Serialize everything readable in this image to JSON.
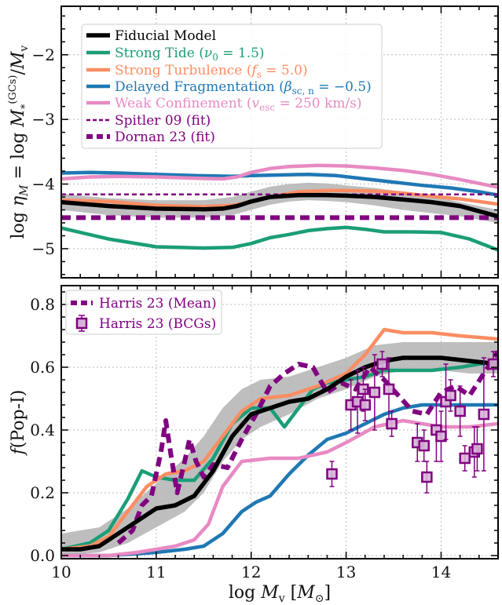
{
  "chart_data": [
    {
      "type": "line",
      "panel": "top",
      "ylabel": "log η_M = log M_*^(GCs) / M_v",
      "xlim": [
        10,
        14.6
      ],
      "ylim": [
        -5.45,
        -1.25
      ],
      "yticks": [
        -5,
        -4,
        -3,
        -2
      ],
      "ytick_labels": [
        "−5",
        "−4",
        "−3",
        "−2"
      ],
      "grid": true,
      "legend_placement": "top-left",
      "band": {
        "x": [
          10.0,
          10.5,
          11.0,
          11.5,
          11.8,
          12.0,
          12.2,
          12.4,
          12.6,
          12.8,
          13.0,
          13.3,
          13.6,
          13.9,
          14.2,
          14.6
        ],
        "lower": [
          -4.4,
          -4.48,
          -4.52,
          -4.52,
          -4.48,
          -4.4,
          -4.32,
          -4.27,
          -4.25,
          -4.26,
          -4.28,
          -4.33,
          -4.4,
          -4.45,
          -4.5,
          -4.6
        ],
        "upper": [
          -4.15,
          -4.22,
          -4.25,
          -4.25,
          -4.2,
          -4.12,
          -4.04,
          -4.0,
          -3.98,
          -3.99,
          -4.02,
          -4.06,
          -4.12,
          -4.18,
          -4.28,
          -4.4
        ]
      },
      "series": [
        {
          "name": "Fiducial Model",
          "color": "#000000",
          "style": "solid",
          "width": 5.5,
          "x": [
            10.0,
            10.5,
            11.0,
            11.5,
            11.7,
            11.85,
            12.0,
            12.2,
            12.5,
            12.8,
            13.0,
            13.3,
            13.6,
            13.9,
            14.2,
            14.6
          ],
          "y": [
            -4.28,
            -4.34,
            -4.38,
            -4.39,
            -4.38,
            -4.34,
            -4.27,
            -4.2,
            -4.17,
            -4.17,
            -4.18,
            -4.2,
            -4.24,
            -4.28,
            -4.34,
            -4.5
          ]
        },
        {
          "name": "Strong Tide (ν0 = 1.5)",
          "color": "#1b9e77",
          "style": "solid",
          "width": 4.5,
          "x": [
            10.0,
            10.5,
            11.0,
            11.5,
            11.8,
            12.0,
            12.2,
            12.4,
            12.6,
            12.8,
            13.0,
            13.2,
            13.4,
            13.7,
            14.0,
            14.3,
            14.6
          ],
          "y": [
            -4.68,
            -4.85,
            -4.97,
            -4.99,
            -4.98,
            -4.92,
            -4.83,
            -4.78,
            -4.72,
            -4.69,
            -4.67,
            -4.7,
            -4.74,
            -4.74,
            -4.75,
            -4.85,
            -5.02
          ]
        },
        {
          "name": "Strong Turbulence (f_s = 5.0)",
          "color": "#fc8d62",
          "style": "solid",
          "width": 4.5,
          "x": [
            10.0,
            10.5,
            11.0,
            11.5,
            11.8,
            12.0,
            12.2,
            12.5,
            12.8,
            13.0,
            13.3,
            13.6,
            13.9,
            14.2,
            14.6
          ],
          "y": [
            -4.25,
            -4.27,
            -4.33,
            -4.35,
            -4.33,
            -4.28,
            -4.2,
            -4.12,
            -4.1,
            -4.1,
            -4.11,
            -4.14,
            -4.19,
            -4.23,
            -4.31
          ]
        },
        {
          "name": "Delayed Fragmentation (β_sc,n = −0.5)",
          "color": "#1f78b4",
          "style": "solid",
          "width": 4.5,
          "x": [
            10.0,
            10.3,
            10.6,
            11.0,
            11.4,
            11.8,
            12.0,
            12.3,
            12.6,
            12.9,
            13.2,
            13.5,
            13.8,
            14.1,
            14.4,
            14.6
          ],
          "y": [
            -3.83,
            -3.82,
            -3.83,
            -3.85,
            -3.87,
            -3.88,
            -3.87,
            -3.86,
            -3.85,
            -3.87,
            -3.92,
            -3.97,
            -4.02,
            -4.06,
            -4.12,
            -4.17
          ]
        },
        {
          "name": "Weak Confinement (v_esc = 250 km/s)",
          "color": "#e78ac3",
          "style": "solid",
          "width": 4.5,
          "x": [
            10.0,
            10.3,
            10.6,
            11.0,
            11.4,
            11.7,
            11.85,
            12.0,
            12.2,
            12.4,
            12.7,
            13.0,
            13.3,
            13.6,
            13.9,
            14.2,
            14.6
          ],
          "y": [
            -3.92,
            -3.89,
            -3.88,
            -3.89,
            -3.91,
            -3.92,
            -3.89,
            -3.82,
            -3.76,
            -3.73,
            -3.71,
            -3.72,
            -3.75,
            -3.79,
            -3.85,
            -3.93,
            -4.05
          ]
        },
        {
          "name": "Spitler 09 (fit)",
          "color": "#800080",
          "style": "dashed-thin",
          "width": 2.5,
          "x": [
            10.0,
            14.6
          ],
          "y": [
            -4.16,
            -4.16
          ]
        },
        {
          "name": "Dornan 23 (fit)",
          "color": "#800080",
          "style": "dashed-thick",
          "width": 6,
          "x": [
            10.0,
            14.6
          ],
          "y": [
            -4.52,
            -4.52
          ]
        }
      ]
    },
    {
      "type": "line",
      "panel": "bottom",
      "xlabel": "log M_v [M_⊙]",
      "ylabel": "f(Pop-I)",
      "xlim": [
        10,
        14.6
      ],
      "ylim": [
        -0.01,
        0.86
      ],
      "xticks": [
        10,
        11,
        12,
        13,
        14
      ],
      "xtick_labels": [
        "10",
        "11",
        "12",
        "13",
        "14"
      ],
      "yticks": [
        0.0,
        0.2,
        0.4,
        0.6,
        0.8
      ],
      "ytick_labels": [
        "0.0",
        "0.2",
        "0.4",
        "0.6",
        "0.8"
      ],
      "grid": true,
      "legend_placement": "top-left",
      "band": {
        "x": [
          10.0,
          10.4,
          10.7,
          11.0,
          11.3,
          11.5,
          11.7,
          11.9,
          12.1,
          12.4,
          12.7,
          13.0,
          13.3,
          13.6,
          14.0,
          14.3,
          14.6
        ],
        "lower": [
          0.0,
          0.01,
          0.04,
          0.09,
          0.14,
          0.2,
          0.3,
          0.37,
          0.41,
          0.45,
          0.5,
          0.53,
          0.57,
          0.59,
          0.59,
          0.58,
          0.58
        ],
        "upper": [
          0.07,
          0.09,
          0.15,
          0.23,
          0.31,
          0.38,
          0.47,
          0.53,
          0.56,
          0.57,
          0.6,
          0.63,
          0.67,
          0.68,
          0.68,
          0.68,
          0.68
        ]
      },
      "series": [
        {
          "name": "Fiducial Model",
          "color": "#000000",
          "style": "solid",
          "width": 5.5,
          "x": [
            10.0,
            10.2,
            10.4,
            10.6,
            10.8,
            11.0,
            11.2,
            11.4,
            11.6,
            11.8,
            12.0,
            12.2,
            12.4,
            12.6,
            12.8,
            13.0,
            13.2,
            13.4,
            13.6,
            13.8,
            14.0,
            14.3,
            14.6
          ],
          "y": [
            0.02,
            0.02,
            0.03,
            0.07,
            0.11,
            0.15,
            0.16,
            0.19,
            0.27,
            0.38,
            0.45,
            0.47,
            0.49,
            0.5,
            0.53,
            0.57,
            0.6,
            0.62,
            0.63,
            0.63,
            0.63,
            0.62,
            0.61
          ]
        },
        {
          "name": "Strong Tide",
          "color": "#1b9e77",
          "style": "solid",
          "width": 4.5,
          "x": [
            10.0,
            10.3,
            10.5,
            10.7,
            10.85,
            11.0,
            11.2,
            11.4,
            11.6,
            11.8,
            12.0,
            12.2,
            12.35,
            12.5,
            12.65,
            12.8,
            13.0,
            13.2,
            13.4,
            13.6,
            13.9,
            14.2,
            14.6
          ],
          "y": [
            0.02,
            0.04,
            0.08,
            0.18,
            0.27,
            0.25,
            0.24,
            0.24,
            0.31,
            0.42,
            0.47,
            0.47,
            0.41,
            0.47,
            0.53,
            0.55,
            0.56,
            0.57,
            0.59,
            0.59,
            0.59,
            0.6,
            0.62
          ]
        },
        {
          "name": "Strong Turbulence",
          "color": "#fc8d62",
          "style": "solid",
          "width": 4.5,
          "x": [
            10.0,
            10.3,
            10.5,
            10.7,
            10.9,
            11.1,
            11.3,
            11.5,
            11.7,
            11.9,
            12.1,
            12.4,
            12.7,
            13.0,
            13.2,
            13.4,
            13.6,
            13.9,
            14.2,
            14.6
          ],
          "y": [
            0.02,
            0.03,
            0.06,
            0.14,
            0.22,
            0.26,
            0.27,
            0.3,
            0.38,
            0.46,
            0.5,
            0.51,
            0.54,
            0.58,
            0.64,
            0.72,
            0.71,
            0.71,
            0.7,
            0.69
          ]
        },
        {
          "name": "Delayed Fragmentation",
          "color": "#1f78b4",
          "style": "solid",
          "width": 4.5,
          "x": [
            10.0,
            10.5,
            11.0,
            11.3,
            11.5,
            11.7,
            11.9,
            12.05,
            12.2,
            12.4,
            12.6,
            12.8,
            13.0,
            13.2,
            13.4,
            13.6,
            13.8,
            14.0,
            14.3,
            14.6
          ],
          "y": [
            0.0,
            0.0,
            0.01,
            0.02,
            0.03,
            0.07,
            0.14,
            0.17,
            0.19,
            0.26,
            0.32,
            0.37,
            0.39,
            0.42,
            0.45,
            0.47,
            0.48,
            0.48,
            0.48,
            0.48
          ]
        },
        {
          "name": "Weak Confinement",
          "color": "#e78ac3",
          "style": "solid",
          "width": 4.5,
          "x": [
            10.0,
            10.5,
            10.8,
            11.0,
            11.2,
            11.4,
            11.55,
            11.7,
            11.9,
            12.2,
            12.5,
            12.8,
            13.0,
            13.3,
            13.6,
            13.8,
            14.0,
            14.3,
            14.6
          ],
          "y": [
            0.0,
            0.0,
            0.01,
            0.02,
            0.03,
            0.05,
            0.1,
            0.22,
            0.3,
            0.31,
            0.31,
            0.33,
            0.36,
            0.41,
            0.43,
            0.42,
            0.41,
            0.41,
            0.42
          ]
        },
        {
          "name": "Harris 23 (Mean)",
          "color": "#800080",
          "style": "dashed-thick",
          "width": 6,
          "x": [
            10.6,
            10.75,
            10.85,
            10.95,
            11.05,
            11.1,
            11.15,
            11.22,
            11.3,
            11.35,
            11.42,
            11.5,
            11.6,
            11.75,
            11.9,
            12.05,
            12.2,
            12.35,
            12.5,
            12.65,
            12.8,
            12.95,
            13.1,
            13.25,
            13.4,
            13.55,
            13.7,
            13.85,
            14.0,
            14.15,
            14.3,
            14.45,
            14.6
          ],
          "y": [
            0.04,
            0.08,
            0.16,
            0.19,
            0.33,
            0.43,
            0.33,
            0.2,
            0.3,
            0.37,
            0.3,
            0.25,
            0.29,
            0.28,
            0.37,
            0.45,
            0.54,
            0.58,
            0.61,
            0.6,
            0.52,
            0.55,
            0.53,
            0.6,
            0.56,
            0.51,
            0.46,
            0.45,
            0.52,
            0.54,
            0.51,
            0.58,
            0.65
          ]
        },
        {
          "name": "Harris 23 (BCGs)",
          "color": "#800080",
          "style": "markers",
          "x": [
            12.85,
            13.05,
            13.12,
            13.18,
            13.2,
            13.3,
            13.38,
            13.45,
            13.48,
            13.75,
            13.82,
            13.85,
            13.95,
            14.0,
            14.05,
            14.1,
            14.2,
            14.25,
            14.35,
            14.38,
            14.45,
            14.55
          ],
          "y": [
            0.26,
            0.48,
            0.49,
            0.53,
            0.48,
            0.52,
            0.61,
            0.53,
            0.42,
            0.36,
            0.35,
            0.25,
            0.4,
            0.38,
            0.49,
            0.51,
            0.46,
            0.31,
            0.33,
            0.34,
            0.45,
            0.61
          ],
          "err": [
            0.04,
            0.08,
            0.1,
            0.07,
            0.05,
            0.12,
            0.04,
            0.1,
            0.04,
            0.06,
            0.05,
            0.05,
            0.1,
            0.08,
            0.12,
            0.05,
            0.08,
            0.04,
            0.08,
            0.07,
            0.18,
            0.04
          ]
        }
      ]
    }
  ]
}
